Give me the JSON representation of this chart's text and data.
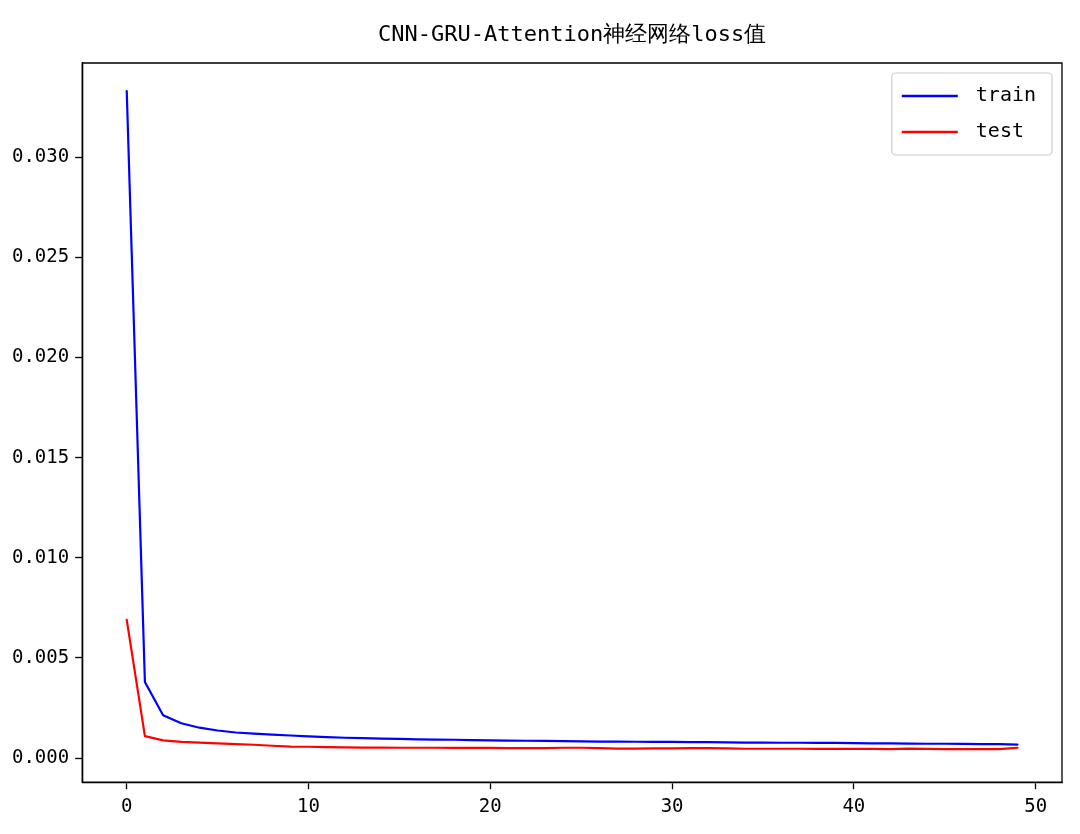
{
  "chart_data": {
    "type": "line",
    "title": "CNN-GRU-Attention神经网络loss值",
    "x": [
      0,
      1,
      2,
      3,
      4,
      5,
      6,
      7,
      8,
      9,
      10,
      11,
      12,
      13,
      14,
      15,
      16,
      17,
      18,
      19,
      20,
      21,
      22,
      23,
      24,
      25,
      26,
      27,
      28,
      29,
      30,
      31,
      32,
      33,
      34,
      35,
      36,
      37,
      38,
      39,
      40,
      41,
      42,
      43,
      44,
      45,
      46,
      47,
      48,
      49
    ],
    "series": [
      {
        "name": "train",
        "color": "#0000ff",
        "values": [
          0.0333,
          0.0038,
          0.00214,
          0.00174,
          0.00152,
          0.00138,
          0.00128,
          0.00122,
          0.00117,
          0.00113,
          0.00109,
          0.00105,
          0.00102,
          0.001,
          0.00098,
          0.00096,
          0.00094,
          0.00093,
          0.00092,
          0.0009,
          0.00089,
          0.00088,
          0.00087,
          0.00086,
          0.00085,
          0.00084,
          0.00083,
          0.00083,
          0.00082,
          0.00081,
          0.00081,
          0.0008,
          0.0008,
          0.00079,
          0.00078,
          0.00078,
          0.00077,
          0.00077,
          0.00076,
          0.00076,
          0.00075,
          0.00074,
          0.00074,
          0.00073,
          0.00072,
          0.00072,
          0.00071,
          0.0007,
          0.0007,
          0.00068
        ]
      },
      {
        "name": "test",
        "color": "#ff0000",
        "values": [
          0.0069,
          0.0011,
          0.00089,
          0.00081,
          0.00078,
          0.00074,
          0.0007,
          0.00067,
          0.00062,
          0.00058,
          0.00057,
          0.00055,
          0.00054,
          0.00053,
          0.00053,
          0.00052,
          0.00052,
          0.00052,
          0.00051,
          0.00051,
          0.00051,
          0.0005,
          0.0005,
          0.0005,
          0.00052,
          0.00052,
          0.0005,
          0.00048,
          0.00048,
          0.00049,
          0.00049,
          0.0005,
          0.0005,
          0.00049,
          0.00047,
          0.00047,
          0.00047,
          0.00047,
          0.00046,
          0.00046,
          0.00047,
          0.00046,
          0.00045,
          0.00048,
          0.00046,
          0.00045,
          0.00045,
          0.00045,
          0.00045,
          0.00052
        ]
      }
    ],
    "xlim": [
      -2.45,
      51.45
    ],
    "xticks": [
      0,
      10,
      20,
      30,
      40,
      50
    ],
    "ylim": [
      -0.0012,
      0.0347
    ],
    "yticks": [
      {
        "value": 0,
        "label": "0.000"
      },
      {
        "value": 0.005,
        "label": "0.005"
      },
      {
        "value": 0.01,
        "label": "0.010"
      },
      {
        "value": 0.015,
        "label": "0.015"
      },
      {
        "value": 0.02,
        "label": "0.020"
      },
      {
        "value": 0.025,
        "label": "0.025"
      },
      {
        "value": 0.03,
        "label": "0.030"
      }
    ],
    "grid": false,
    "legend": "top right",
    "marker": "none",
    "line_style": "solid"
  }
}
